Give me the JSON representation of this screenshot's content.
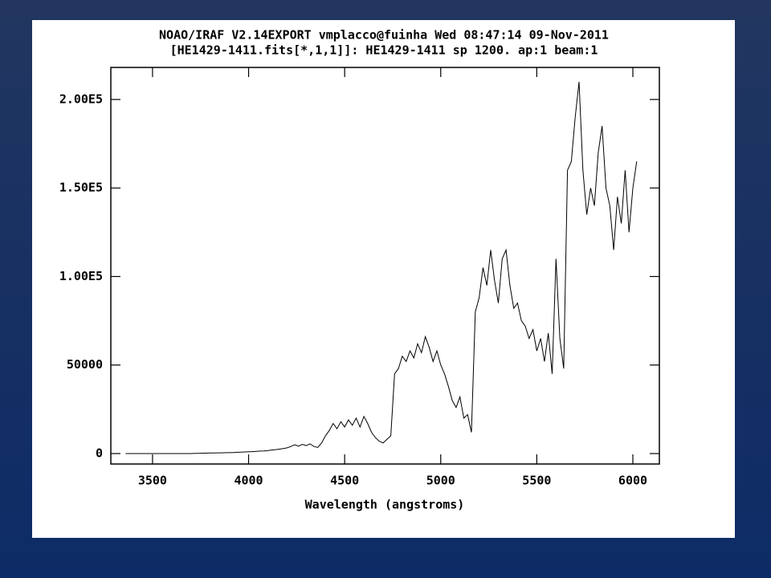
{
  "chart_data": {
    "type": "line",
    "title": "NOAO/IRAF V2.14EXPORT vmplacco@fuinha Wed 08:47:14 09-Nov-2011",
    "subtitle": "[HE1429-1411.fits[*,1,1]]: HE1429-1411 sp 1200. ap:1 beam:1",
    "x_label": "Wavelength (angstroms)",
    "x": [
      3360,
      3380,
      3400,
      3420,
      3440,
      3460,
      3480,
      3500,
      3520,
      3540,
      3560,
      3580,
      3600,
      3620,
      3640,
      3660,
      3680,
      3700,
      3720,
      3740,
      3760,
      3780,
      3800,
      3820,
      3840,
      3860,
      3880,
      3900,
      3920,
      3940,
      3960,
      3980,
      4000,
      4020,
      4040,
      4060,
      4080,
      4100,
      4120,
      4140,
      4160,
      4180,
      4200,
      4220,
      4240,
      4260,
      4280,
      4300,
      4320,
      4340,
      4360,
      4380,
      4400,
      4420,
      4440,
      4460,
      4480,
      4500,
      4520,
      4540,
      4560,
      4580,
      4600,
      4620,
      4640,
      4660,
      4680,
      4700,
      4720,
      4740,
      4760,
      4780,
      4800,
      4820,
      4840,
      4860,
      4880,
      4900,
      4920,
      4940,
      4960,
      4980,
      5000,
      5020,
      5040,
      5060,
      5080,
      5100,
      5120,
      5140,
      5160,
      5180,
      5200,
      5220,
      5240,
      5260,
      5280,
      5300,
      5320,
      5340,
      5360,
      5380,
      5400,
      5420,
      5440,
      5460,
      5480,
      5500,
      5520,
      5540,
      5560,
      5580,
      5600,
      5620,
      5640,
      5660,
      5680,
      5700,
      5720,
      5740,
      5760,
      5780,
      5800,
      5820,
      5840,
      5860,
      5880,
      5900,
      5920,
      5940,
      5960,
      5980,
      6000,
      6020
    ],
    "series": [
      {
        "color": "#000000",
        "values": [
          0,
          0,
          0,
          0,
          0,
          0,
          0,
          0,
          0,
          0,
          0,
          0,
          0,
          0,
          0,
          0,
          0,
          0,
          100,
          100,
          200,
          200,
          300,
          300,
          400,
          400,
          500,
          500,
          600,
          700,
          800,
          900,
          1000,
          1100,
          1200,
          1400,
          1500,
          1700,
          2000,
          2200,
          2500,
          2800,
          3200,
          4000,
          5000,
          4200,
          5200,
          4500,
          5500,
          4000,
          3500,
          6000,
          10000,
          13000,
          17000,
          14000,
          18000,
          15000,
          19000,
          16000,
          20000,
          15000,
          21000,
          17000,
          12000,
          9000,
          7000,
          6000,
          8000,
          10000,
          45000,
          48000,
          55000,
          52000,
          58000,
          54000,
          62000,
          57000,
          66000,
          60000,
          52000,
          58000,
          50000,
          45000,
          38000,
          30000,
          26000,
          32000,
          20000,
          22000,
          12000,
          80000,
          88000,
          105000,
          95000,
          115000,
          98000,
          85000,
          110000,
          115000,
          95000,
          82000,
          85000,
          75000,
          72000,
          65000,
          70000,
          58000,
          65000,
          52000,
          68000,
          45000,
          110000,
          65000,
          48000,
          160000,
          165000,
          190000,
          210000,
          160000,
          135000,
          150000,
          140000,
          170000,
          185000,
          150000,
          140000,
          115000,
          145000,
          130000,
          160000,
          125000,
          150000,
          165000
        ]
      }
    ],
    "xlim": [
      3283,
      6138
    ],
    "xticks": [
      3500,
      4000,
      4500,
      5000,
      5500,
      6000
    ],
    "ylim": [
      -5900,
      218100
    ],
    "yticks": [
      0,
      50000,
      {
        "value": 100000,
        "label": "1.00E5"
      },
      {
        "value": 150000,
        "label": "1.50E5"
      },
      {
        "value": 200000,
        "label": "2.00E5"
      }
    ]
  }
}
